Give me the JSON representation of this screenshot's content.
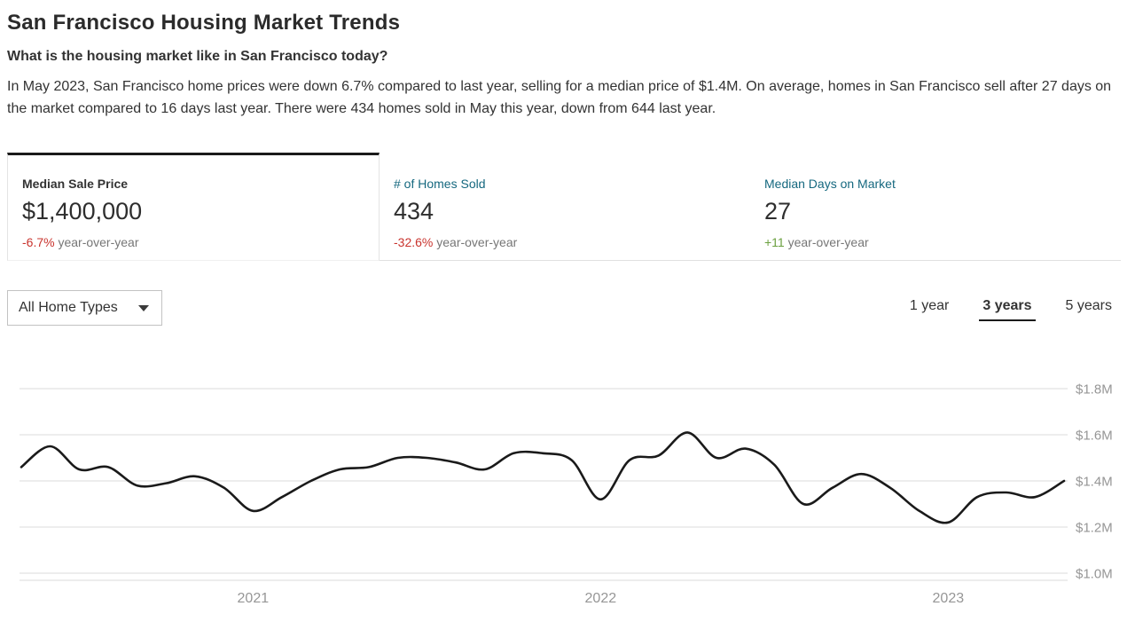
{
  "page": {
    "title": "San Francisco Housing Market Trends",
    "subtitle": "What is the housing market like in San Francisco today?",
    "summary": "In May 2023, San Francisco home prices were down 6.7% compared to last year, selling for a median price of $1.4M. On average, homes in San Francisco sell after 27 days on the market compared to 16 days last year. There were 434 homes sold in May this year, down from 644 last year."
  },
  "colors": {
    "accent_blue": "#15687f",
    "negative": "#c9342e",
    "positive": "#6ba03f",
    "line": "#1a1a1a",
    "grid": "#ededed",
    "axis_text": "#969696"
  },
  "metric_tabs": [
    {
      "label": "Median Sale Price",
      "value": "$1,400,000",
      "change": "-6.7%",
      "change_suffix": " year-over-year",
      "direction": "down",
      "selected": true
    },
    {
      "label": "# of Homes Sold",
      "value": "434",
      "change": "-32.6%",
      "change_suffix": " year-over-year",
      "direction": "down",
      "selected": false
    },
    {
      "label": "Median Days on Market",
      "value": "27",
      "change": "+11",
      "change_suffix": " year-over-year",
      "direction": "up",
      "selected": false
    }
  ],
  "filters": {
    "home_type": {
      "selected_value": "All Home Types"
    },
    "ranges": [
      {
        "label": "1 year",
        "selected": false
      },
      {
        "label": "3 years",
        "selected": true
      },
      {
        "label": "5 years",
        "selected": false
      }
    ]
  },
  "chart_data": {
    "type": "line",
    "title": "Median Sale Price ($M), All Home Types, 3 years",
    "x": [
      "2020-05",
      "2020-06",
      "2020-07",
      "2020-08",
      "2020-09",
      "2020-10",
      "2020-11",
      "2020-12",
      "2021-01",
      "2021-02",
      "2021-03",
      "2021-04",
      "2021-05",
      "2021-06",
      "2021-07",
      "2021-08",
      "2021-09",
      "2021-10",
      "2021-11",
      "2021-12",
      "2022-01",
      "2022-02",
      "2022-03",
      "2022-04",
      "2022-05",
      "2022-06",
      "2022-07",
      "2022-08",
      "2022-09",
      "2022-10",
      "2022-11",
      "2022-12",
      "2023-01",
      "2023-02",
      "2023-03",
      "2023-04",
      "2023-05"
    ],
    "series": [
      {
        "name": "Median Sale Price",
        "values": [
          1.46,
          1.55,
          1.45,
          1.46,
          1.38,
          1.39,
          1.42,
          1.37,
          1.27,
          1.33,
          1.4,
          1.45,
          1.46,
          1.5,
          1.5,
          1.48,
          1.45,
          1.52,
          1.52,
          1.49,
          1.32,
          1.49,
          1.51,
          1.61,
          1.5,
          1.54,
          1.47,
          1.3,
          1.37,
          1.43,
          1.37,
          1.27,
          1.22,
          1.33,
          1.35,
          1.33,
          1.4
        ]
      }
    ],
    "units": "millions of USD",
    "ylim": [
      1.0,
      1.8
    ],
    "yticks": [
      {
        "value": 1.8,
        "label": "$1.8M"
      },
      {
        "value": 1.6,
        "label": "$1.6M"
      },
      {
        "value": 1.4,
        "label": "$1.4M"
      },
      {
        "value": 1.2,
        "label": "$1.2M"
      },
      {
        "value": 1.0,
        "label": "$1.0M"
      }
    ],
    "xticks": [
      {
        "label": "2021",
        "month_index": 8
      },
      {
        "label": "2022",
        "month_index": 20
      },
      {
        "label": "2023",
        "month_index": 32
      }
    ],
    "grid": true,
    "legend": "none",
    "ytick_side": "right"
  }
}
